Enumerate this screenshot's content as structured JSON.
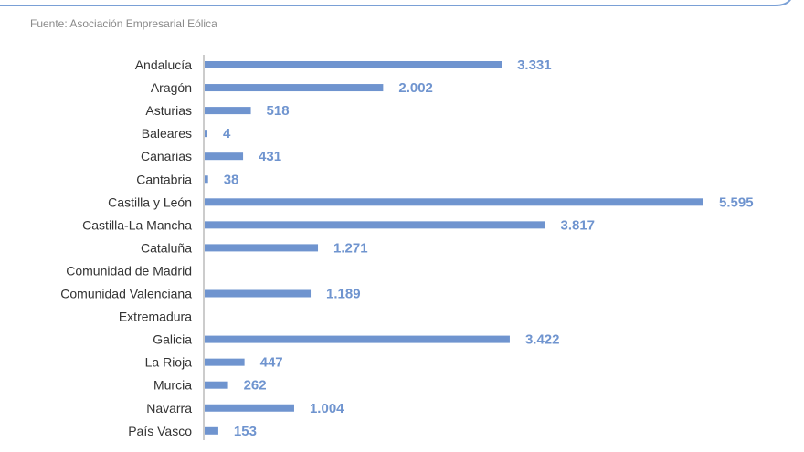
{
  "source_note": "Fuente: Asociación Empresarial Eólica",
  "colors": {
    "bar": "#6f94cf",
    "value_label": "#6f94cf",
    "frame": "#7aa0d6",
    "axis": "#9a9a9a",
    "category_label": "#333333",
    "source_note": "#8a8a8a"
  },
  "chart_data": {
    "type": "bar",
    "orientation": "horizontal",
    "title": "",
    "xlabel": "",
    "ylabel": "",
    "grid": false,
    "xlim": [
      0,
      6000
    ],
    "categories": [
      "Andalucía",
      "Aragón",
      "Asturias",
      "Baleares",
      "Canarias",
      "Cantabria",
      "Castilla y León",
      "Castilla-La Mancha",
      "Cataluña",
      "Comunidad de Madrid",
      "Comunidad Valenciana",
      "Extremadura",
      "Galicia",
      "La Rioja",
      "Murcia",
      "Navarra",
      "País Vasco"
    ],
    "values": [
      3331,
      2002,
      518,
      4,
      431,
      38,
      5595,
      3817,
      1271,
      null,
      1189,
      null,
      3422,
      447,
      262,
      1004,
      153
    ],
    "value_labels": [
      "3.331",
      "2.002",
      "518",
      "4",
      "431",
      "38",
      "5.595",
      "3.817",
      "1.271",
      "",
      "1.189",
      "",
      "3.422",
      "447",
      "262",
      "1.004",
      "153"
    ]
  }
}
